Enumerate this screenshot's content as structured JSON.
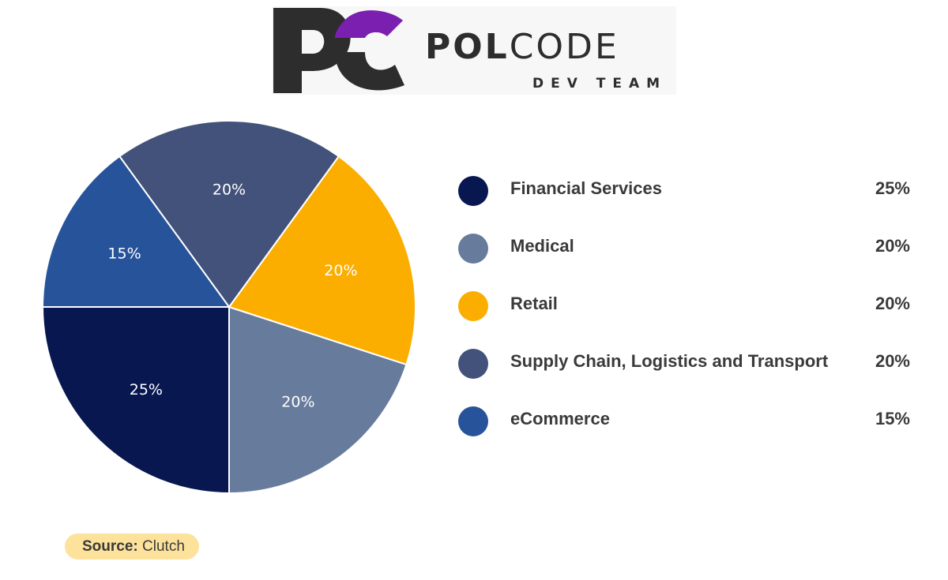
{
  "logo": {
    "brand_bold": "POL",
    "brand_light": "CODE",
    "tagline": "DEV TEAM",
    "mark_dark_color": "#2d2d2d",
    "mark_accent_color": "#7a1fb0"
  },
  "chart_data": {
    "type": "pie",
    "title": "",
    "categories": [
      "Financial Services",
      "Medical",
      "Retail",
      "Supply Chain, Logistics and Transport",
      "eCommerce"
    ],
    "values": [
      25,
      20,
      20,
      20,
      15
    ],
    "labels": [
      "25%",
      "20%",
      "20%",
      "20%",
      "15%"
    ],
    "colors": [
      "#08174f",
      "#677b9c",
      "#fbae00",
      "#43527a",
      "#27539b"
    ],
    "legend_position": "right"
  },
  "legend": {
    "items": [
      {
        "label": "Financial Services",
        "value": "25%",
        "color": "#08174f"
      },
      {
        "label": "Medical",
        "value": "20%",
        "color": "#677b9c"
      },
      {
        "label": "Retail",
        "value": "20%",
        "color": "#fbae00"
      },
      {
        "label": "Supply Chain, Logistics and Transport",
        "value": "20%",
        "color": "#43527a"
      },
      {
        "label": "eCommerce",
        "value": "15%",
        "color": "#27539b"
      }
    ]
  },
  "source": {
    "key": "Source:",
    "value": "Clutch"
  }
}
